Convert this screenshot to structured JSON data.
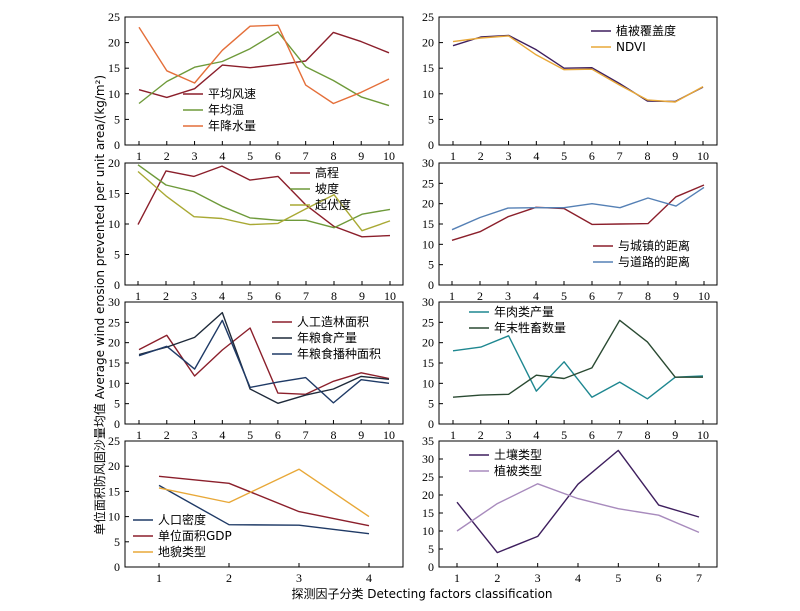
{
  "xlabel": "探测因子分类 Detecting factors classification",
  "ylabel": "单位面积防风固沙量均值 Average wind erosion prevented per unit area/(kg/m²)",
  "colors": {
    "dark_red": "#8b1f2b",
    "green": "#6e9a3a",
    "orange": "#e46f3a",
    "purple": "#3e1f5e",
    "gold": "#e8a838",
    "olive": "#a9a934",
    "blue": "#5580b5",
    "navy": "#1f3a66",
    "teal": "#1e8790",
    "dark_green": "#2a4a32",
    "lavender": "#a88bbd",
    "dark_slate": "#1e2a3a"
  },
  "chart_data": [
    {
      "type": "line",
      "x": [
        1,
        2,
        3,
        4,
        5,
        6,
        7,
        8,
        9,
        10
      ],
      "ylim": [
        0,
        25
      ],
      "yticks": [
        0,
        5,
        10,
        15,
        20,
        25
      ],
      "xticks": [
        1,
        2,
        3,
        4,
        5,
        6,
        7,
        8,
        9,
        10
      ],
      "legend": "left-bottom",
      "series": [
        {
          "name": "平均风速",
          "color": "dark_red",
          "values": [
            10.8,
            9.3,
            11.0,
            15.6,
            15.1,
            15.7,
            16.4,
            22.0,
            20.2,
            18.0
          ]
        },
        {
          "name": "年均温",
          "color": "green",
          "values": [
            8.1,
            12.4,
            15.2,
            16.3,
            18.8,
            22.1,
            15.3,
            12.6,
            9.4,
            7.7
          ]
        },
        {
          "name": "年降水量",
          "color": "orange",
          "values": [
            23.0,
            14.5,
            12.1,
            18.5,
            23.2,
            23.4,
            11.7,
            8.1,
            10.3,
            12.9
          ]
        }
      ]
    },
    {
      "type": "line",
      "x": [
        1,
        2,
        3,
        4,
        5,
        6,
        7,
        8,
        9,
        10
      ],
      "ylim": [
        0,
        25
      ],
      "yticks": [
        0,
        5,
        10,
        15,
        20,
        25
      ],
      "xticks": [
        1,
        2,
        3,
        4,
        5,
        6,
        7,
        8,
        9,
        10
      ],
      "legend": "top-right",
      "series": [
        {
          "name": "植被覆盖度",
          "color": "purple",
          "values": [
            19.4,
            21.1,
            21.4,
            18.6,
            15.0,
            15.1,
            12.0,
            8.6,
            8.5,
            11.3
          ]
        },
        {
          "name": "NDVI",
          "color": "gold",
          "values": [
            20.2,
            20.9,
            21.3,
            17.6,
            14.7,
            14.8,
            11.7,
            8.8,
            8.4,
            11.4
          ]
        }
      ]
    },
    {
      "type": "line",
      "x": [
        1,
        2,
        3,
        4,
        5,
        6,
        7,
        8,
        9,
        10
      ],
      "ylim": [
        0,
        20
      ],
      "yticks": [
        0,
        5,
        10,
        15,
        20
      ],
      "xticks": [
        1,
        2,
        3,
        4,
        5,
        6,
        7,
        8,
        9,
        10
      ],
      "legend": "top-right",
      "series": [
        {
          "name": "高程",
          "color": "dark_red",
          "values": [
            9.9,
            18.7,
            17.8,
            19.5,
            17.2,
            17.8,
            13.1,
            9.6,
            7.9,
            8.1
          ]
        },
        {
          "name": "坡度",
          "color": "green",
          "values": [
            19.7,
            16.4,
            15.3,
            12.9,
            11.0,
            10.6,
            10.6,
            9.4,
            11.6,
            12.4
          ]
        },
        {
          "name": "起伏度",
          "color": "olive",
          "values": [
            18.6,
            14.6,
            11.2,
            10.9,
            9.9,
            10.1,
            12.5,
            14.8,
            8.9,
            10.5
          ]
        }
      ]
    },
    {
      "type": "line",
      "x": [
        1,
        2,
        3,
        4,
        5,
        6,
        7,
        8,
        9,
        10
      ],
      "ylim": [
        0,
        30
      ],
      "yticks": [
        0,
        5,
        10,
        15,
        20,
        25,
        30
      ],
      "xticks": [
        1,
        2,
        3,
        4,
        5,
        6,
        7,
        8,
        9,
        10
      ],
      "legend": "bottom-right",
      "series": [
        {
          "name": "与城镇的距离",
          "color": "dark_red",
          "values": [
            11.0,
            13.1,
            16.8,
            19.1,
            18.8,
            14.9,
            15.0,
            15.1,
            21.7,
            24.6
          ]
        },
        {
          "name": "与道路的距离",
          "color": "blue",
          "values": [
            13.6,
            16.6,
            18.9,
            19.0,
            19.0,
            20.0,
            19.0,
            21.4,
            19.4,
            24.0
          ]
        }
      ]
    },
    {
      "type": "line",
      "x": [
        1,
        2,
        3,
        4,
        5,
        6,
        7,
        8,
        9,
        10
      ],
      "ylim": [
        0,
        30
      ],
      "yticks": [
        0,
        5,
        10,
        15,
        20,
        25,
        30
      ],
      "xticks": [
        1,
        2,
        3,
        4,
        5,
        6,
        7,
        8,
        9,
        10
      ],
      "legend": "top-right",
      "series": [
        {
          "name": "人工造林面积",
          "color": "dark_red",
          "values": [
            18.3,
            21.8,
            11.8,
            18.2,
            23.6,
            7.6,
            7.3,
            10.5,
            12.6,
            11.2
          ]
        },
        {
          "name": "年粮食产量",
          "color": "dark_slate",
          "values": [
            17.1,
            18.9,
            21.3,
            27.4,
            8.6,
            5.1,
            7.1,
            8.6,
            11.7,
            11.0
          ]
        },
        {
          "name": "年粮食播种面积",
          "color": "navy",
          "values": [
            16.8,
            19.1,
            13.5,
            25.5,
            9.0,
            10.3,
            11.4,
            5.2,
            10.9,
            10.0
          ]
        }
      ]
    },
    {
      "type": "line",
      "x": [
        1,
        2,
        3,
        4,
        5,
        6,
        7,
        8,
        9,
        10
      ],
      "ylim": [
        0,
        30
      ],
      "yticks": [
        0,
        5,
        10,
        15,
        20,
        25,
        30
      ],
      "xticks": [
        1,
        2,
        3,
        4,
        5,
        6,
        7,
        8,
        9,
        10
      ],
      "legend": "top-left",
      "series": [
        {
          "name": "年肉类产量",
          "color": "teal",
          "values": [
            18.0,
            18.9,
            21.7,
            8.1,
            15.3,
            6.6,
            10.3,
            6.2,
            11.5,
            11.8
          ]
        },
        {
          "name": "年末牲畜数量",
          "color": "dark_green",
          "values": [
            6.6,
            7.1,
            7.3,
            12.0,
            11.2,
            13.8,
            25.5,
            20.2,
            11.5,
            11.5
          ]
        }
      ]
    },
    {
      "type": "line",
      "x": [
        1,
        2,
        3,
        4
      ],
      "ylim": [
        0,
        25
      ],
      "yticks": [
        0,
        5,
        10,
        15,
        20,
        25
      ],
      "xticks": [
        1,
        2,
        3,
        4
      ],
      "legend": "bottom-left",
      "series": [
        {
          "name": "人口密度",
          "color": "navy",
          "values": [
            16.2,
            8.4,
            8.3,
            6.6
          ]
        },
        {
          "name": "单位面积GDP",
          "color": "dark_red",
          "values": [
            18.0,
            16.6,
            11.0,
            8.2
          ]
        },
        {
          "name": "地貌类型",
          "color": "gold",
          "values": [
            15.7,
            12.8,
            19.4,
            10.0
          ]
        }
      ]
    },
    {
      "type": "line",
      "x": [
        1,
        2,
        3,
        4,
        5,
        6,
        7
      ],
      "ylim": [
        0,
        35
      ],
      "yticks": [
        0,
        5,
        10,
        15,
        20,
        25,
        30,
        35
      ],
      "xticks": [
        1,
        2,
        3,
        4,
        5,
        6,
        7
      ],
      "legend": "top-left",
      "series": [
        {
          "name": "土壤类型",
          "color": "purple",
          "values": [
            18.0,
            4.0,
            8.5,
            23.0,
            32.4,
            17.2,
            13.9
          ]
        },
        {
          "name": "植被类型",
          "color": "lavender",
          "values": [
            10.0,
            17.6,
            23.1,
            19.0,
            16.2,
            14.4,
            9.6
          ]
        }
      ]
    }
  ]
}
